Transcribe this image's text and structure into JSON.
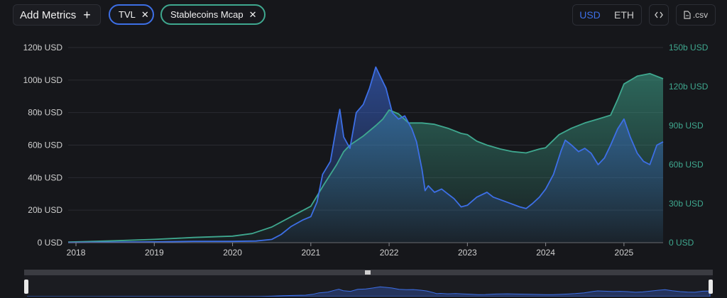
{
  "toolbar": {
    "add_metrics_label": "Add Metrics",
    "add_icon": "plus-icon",
    "chips": [
      {
        "label": "TVL",
        "color": "#3d6fe6"
      },
      {
        "label": "Stablecoins Mcap",
        "color": "#3fa88f"
      }
    ],
    "currency": {
      "options": [
        "USD",
        "ETH"
      ],
      "selected": "USD"
    },
    "embed_icon": "code-icon",
    "csv_label": ".csv",
    "csv_icon": "file-icon"
  },
  "colors": {
    "tvl": "#3d6fe6",
    "stablecoins": "#3fa88f",
    "left_axis": "#d0d0d0",
    "right_axis": "#3fa88f",
    "background": "#16171b"
  },
  "chart_data": {
    "type": "line",
    "legend": "top-left",
    "x_ticks": [
      "2018",
      "2019",
      "2020",
      "2021",
      "2022",
      "2023",
      "2024",
      "2025"
    ],
    "y_left": {
      "ticks": [
        "0 USD",
        "20b USD",
        "40b USD",
        "60b USD",
        "80b USD",
        "100b USD",
        "120b USD"
      ],
      "range": [
        0,
        120
      ]
    },
    "y_right": {
      "ticks": [
        "0 USD",
        "30b USD",
        "60b USD",
        "90b USD",
        "120b USD",
        "150b USD"
      ],
      "range": [
        0,
        150
      ]
    },
    "series": [
      {
        "name": "TVL",
        "axis": "left",
        "points": [
          [
            2017.9,
            0.1
          ],
          [
            2018.5,
            0.3
          ],
          [
            2019.0,
            0.5
          ],
          [
            2019.5,
            0.8
          ],
          [
            2020.0,
            0.8
          ],
          [
            2020.3,
            1.0
          ],
          [
            2020.5,
            2.0
          ],
          [
            2020.62,
            5
          ],
          [
            2020.75,
            10
          ],
          [
            2020.9,
            14
          ],
          [
            2021.0,
            16
          ],
          [
            2021.08,
            25
          ],
          [
            2021.15,
            42
          ],
          [
            2021.25,
            50
          ],
          [
            2021.33,
            72
          ],
          [
            2021.37,
            82
          ],
          [
            2021.42,
            65
          ],
          [
            2021.5,
            58
          ],
          [
            2021.58,
            80
          ],
          [
            2021.67,
            85
          ],
          [
            2021.75,
            95
          ],
          [
            2021.83,
            108
          ],
          [
            2021.88,
            103
          ],
          [
            2021.96,
            95
          ],
          [
            2022.04,
            80
          ],
          [
            2022.12,
            76
          ],
          [
            2022.2,
            78
          ],
          [
            2022.29,
            70
          ],
          [
            2022.35,
            62
          ],
          [
            2022.42,
            45
          ],
          [
            2022.46,
            32
          ],
          [
            2022.5,
            35
          ],
          [
            2022.58,
            31
          ],
          [
            2022.67,
            33
          ],
          [
            2022.75,
            30
          ],
          [
            2022.83,
            27
          ],
          [
            2022.92,
            22
          ],
          [
            2023.0,
            23
          ],
          [
            2023.12,
            28
          ],
          [
            2023.25,
            31
          ],
          [
            2023.33,
            28
          ],
          [
            2023.5,
            25
          ],
          [
            2023.67,
            22
          ],
          [
            2023.75,
            21
          ],
          [
            2023.83,
            24
          ],
          [
            2023.92,
            28
          ],
          [
            2024.0,
            33
          ],
          [
            2024.1,
            42
          ],
          [
            2024.2,
            57
          ],
          [
            2024.25,
            63
          ],
          [
            2024.33,
            60
          ],
          [
            2024.42,
            56
          ],
          [
            2024.5,
            58
          ],
          [
            2024.58,
            55
          ],
          [
            2024.67,
            48
          ],
          [
            2024.75,
            52
          ],
          [
            2024.83,
            60
          ],
          [
            2024.92,
            70
          ],
          [
            2025.0,
            76
          ],
          [
            2025.08,
            65
          ],
          [
            2025.17,
            55
          ],
          [
            2025.25,
            50
          ],
          [
            2025.33,
            48
          ],
          [
            2025.42,
            60
          ],
          [
            2025.5,
            62
          ]
        ]
      },
      {
        "name": "Stablecoins Mcap",
        "axis": "right",
        "points": [
          [
            2017.9,
            0.5
          ],
          [
            2018.5,
            1.5
          ],
          [
            2019.0,
            2.5
          ],
          [
            2019.5,
            4
          ],
          [
            2020.0,
            5
          ],
          [
            2020.25,
            7
          ],
          [
            2020.5,
            12
          ],
          [
            2020.75,
            20
          ],
          [
            2021.0,
            28
          ],
          [
            2021.17,
            45
          ],
          [
            2021.33,
            60
          ],
          [
            2021.42,
            70
          ],
          [
            2021.5,
            75
          ],
          [
            2021.67,
            82
          ],
          [
            2021.83,
            90
          ],
          [
            2021.92,
            95
          ],
          [
            2022.0,
            102
          ],
          [
            2022.12,
            99
          ],
          [
            2022.25,
            92
          ],
          [
            2022.42,
            92
          ],
          [
            2022.58,
            91
          ],
          [
            2022.75,
            88
          ],
          [
            2022.92,
            84
          ],
          [
            2023.0,
            83
          ],
          [
            2023.12,
            78
          ],
          [
            2023.25,
            75
          ],
          [
            2023.42,
            72
          ],
          [
            2023.58,
            70
          ],
          [
            2023.75,
            69
          ],
          [
            2023.92,
            72
          ],
          [
            2024.0,
            73
          ],
          [
            2024.17,
            83
          ],
          [
            2024.33,
            88
          ],
          [
            2024.5,
            92
          ],
          [
            2024.67,
            95
          ],
          [
            2024.83,
            98
          ],
          [
            2024.92,
            110
          ],
          [
            2025.0,
            122
          ],
          [
            2025.17,
            128
          ],
          [
            2025.33,
            130
          ],
          [
            2025.5,
            126
          ]
        ]
      }
    ]
  }
}
